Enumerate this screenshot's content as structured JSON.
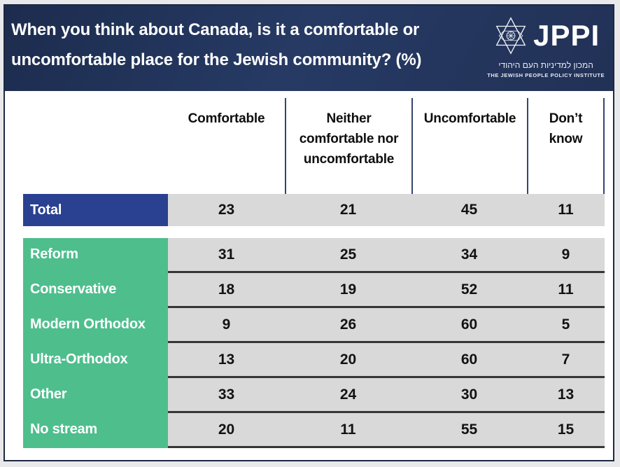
{
  "header": {
    "title_lines": [
      "When you think about Canada, is it a comfortable or",
      "uncomfortable place for the Jewish community? (%)"
    ]
  },
  "logo": {
    "acronym": "JPPI",
    "hebrew_name": "המכון למדיניות העם היהודי",
    "english_name": "THE JEWISH PEOPLE POLICY INSTITUTE",
    "icon": "star-of-david-icon"
  },
  "colors": {
    "header_bg": "#233459",
    "total_row_bg": "#2a4191",
    "stream_row_bg": "#4ebe8d",
    "data_cell_bg": "#d9d9d9",
    "column_divider": "#32466e",
    "row_separator": "#363636",
    "card_border": "#1d2942",
    "page_bg": "#e9e9eb"
  },
  "chart_data": {
    "type": "table",
    "title": "When you think about Canada, is it a comfortable or uncomfortable place for the Jewish community? (%)",
    "columns": [
      "Comfortable",
      "Neither comfortable nor uncomfortable",
      "Uncomfortable",
      "Don’t know"
    ],
    "rows": [
      {
        "label": "Total",
        "values": [
          23,
          21,
          45,
          11
        ]
      },
      {
        "label": "Reform",
        "values": [
          31,
          25,
          34,
          9
        ]
      },
      {
        "label": "Conservative",
        "values": [
          18,
          19,
          52,
          11
        ]
      },
      {
        "label": "Modern Orthodox",
        "values": [
          9,
          26,
          60,
          5
        ]
      },
      {
        "label": "Ultra-Orthodox",
        "values": [
          13,
          20,
          60,
          7
        ]
      },
      {
        "label": "Other",
        "values": [
          33,
          24,
          30,
          13
        ]
      },
      {
        "label": "No stream",
        "values": [
          20,
          11,
          55,
          15
        ]
      }
    ],
    "layout": {
      "grid": false,
      "legend": "none",
      "units": "percent"
    }
  }
}
